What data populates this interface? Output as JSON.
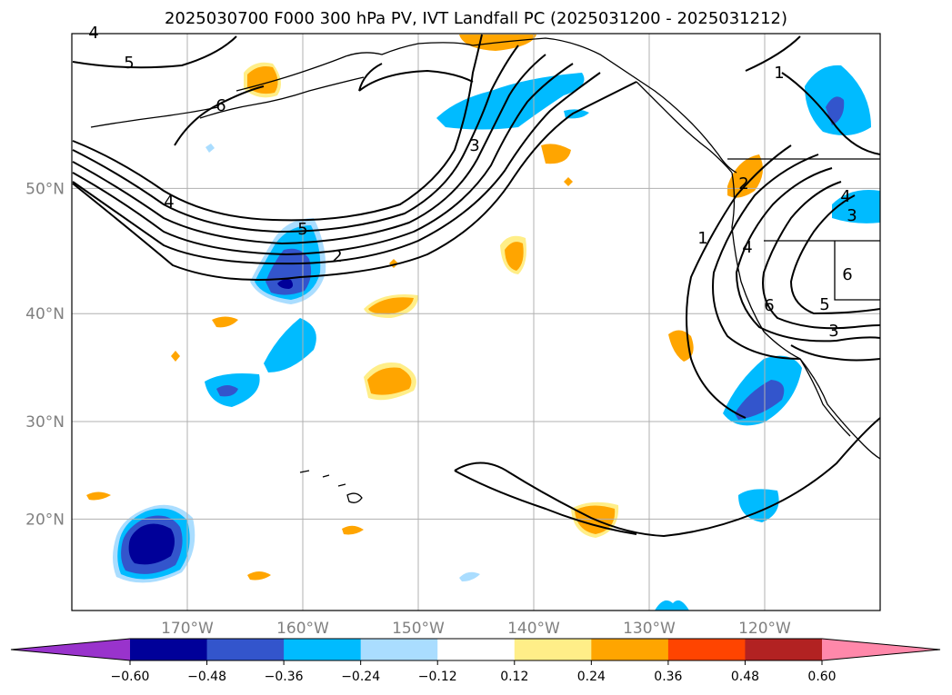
{
  "chart_data": {
    "type": "map-contour",
    "title": "2025030700 F000 300 hPa PV, IVT Landfall PC (2025031200 - 2025031212)",
    "latitude_ticks": [
      "20°N",
      "30°N",
      "40°N",
      "50°N"
    ],
    "latitude_values": [
      20,
      30,
      40,
      50
    ],
    "longitude_ticks": [
      "170°W",
      "160°W",
      "150°W",
      "140°W",
      "130°W",
      "120°W"
    ],
    "longitude_values": [
      -170,
      -160,
      -150,
      -140,
      -130,
      -120
    ],
    "lon_range": [
      -180,
      -110
    ],
    "lat_range": [
      10,
      60
    ],
    "colorbar": {
      "ticks": [
        "−0.60",
        "−0.48",
        "−0.36",
        "−0.24",
        "−0.12",
        "0.12",
        "0.24",
        "0.36",
        "0.48",
        "0.60"
      ],
      "bounds": [
        -0.6,
        -0.48,
        -0.36,
        -0.24,
        -0.12,
        0.12,
        0.24,
        0.36,
        0.48,
        0.6
      ],
      "colors": [
        "#9933cc",
        "#000099",
        "#3355cc",
        "#00bbff",
        "#aaddff",
        "#ffffff",
        "#ffee88",
        "#ffa500",
        "#ff4400",
        "#b22222",
        "#ff88aa"
      ],
      "extend": "both"
    },
    "contour_labels": [
      "4",
      "5",
      "6",
      "3",
      "4",
      "5",
      "2",
      "1",
      "2",
      "1",
      "4",
      "3",
      "6",
      "6",
      "5",
      "3",
      "4"
    ]
  }
}
